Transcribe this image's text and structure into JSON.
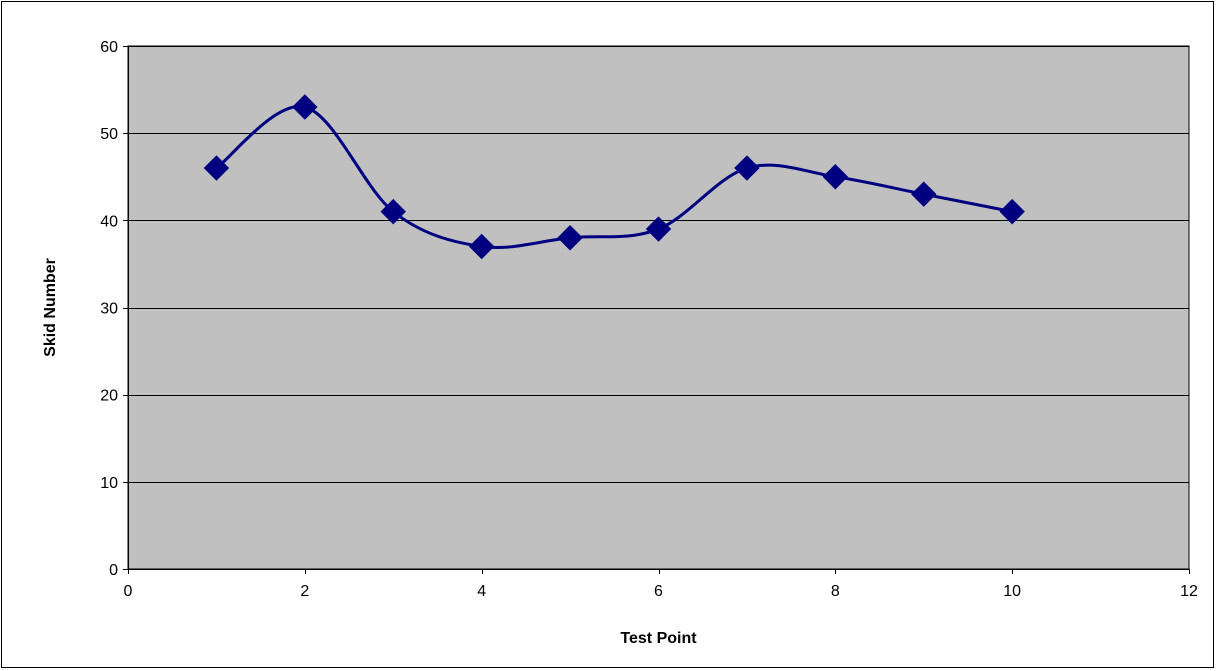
{
  "chart_data": {
    "type": "line",
    "title": "",
    "xlabel": "Test Point",
    "ylabel": "Skid Number",
    "xlim": [
      0,
      12
    ],
    "ylim": [
      0,
      60
    ],
    "x_ticks": [
      0,
      2,
      4,
      6,
      8,
      10,
      12
    ],
    "y_ticks": [
      0,
      10,
      20,
      30,
      40,
      50,
      60
    ],
    "grid": "horizontal major gridlines",
    "legend": "none",
    "smoothed": true,
    "marker": "diamond",
    "series": [
      {
        "x": [
          1,
          2,
          3,
          4,
          5,
          6,
          7,
          8,
          9,
          10
        ],
        "values": [
          46,
          53,
          41,
          37,
          38,
          39,
          46,
          45,
          43,
          41
        ]
      }
    ]
  },
  "colors": {
    "plot_background": "#c0c0c0",
    "series_line": "#000080",
    "marker_fill": "#000080",
    "gridline": "#000000",
    "frame": "#000000"
  }
}
